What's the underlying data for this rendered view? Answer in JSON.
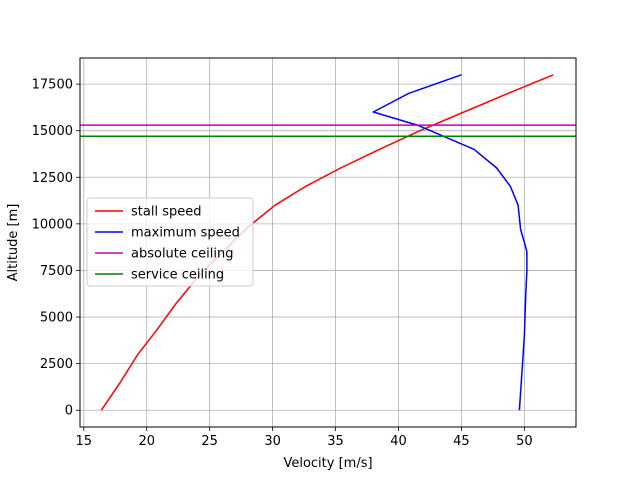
{
  "chart_data": {
    "type": "line",
    "title": "",
    "xlabel": "Velocity [m/s]",
    "ylabel": "Altitude [m]",
    "xlim": [
      14.7,
      54.1
    ],
    "ylim": [
      -900,
      18900
    ],
    "xticks": [
      15,
      20,
      25,
      30,
      35,
      40,
      45,
      50
    ],
    "yticks": [
      0,
      2500,
      5000,
      7500,
      10000,
      12500,
      15000,
      17500
    ],
    "grid": true,
    "legend_position": "center-left",
    "series": [
      {
        "name": "stall speed",
        "color": "#ff0000",
        "kind": "line",
        "x": [
          16.4,
          17.9,
          19.3,
          20.8,
          22.3,
          24.0,
          25.9,
          28.0,
          30.2,
          32.6,
          35.4,
          38.5,
          41.7,
          45.2,
          48.7,
          52.3
        ],
        "y": [
          0,
          1500,
          3000,
          4300,
          5700,
          7100,
          8400,
          9800,
          11000,
          12000,
          13000,
          14000,
          15000,
          16000,
          17000,
          18000
        ]
      },
      {
        "name": "maximum speed",
        "color": "#0000ff",
        "kind": "line",
        "x": [
          49.6,
          49.8,
          50.0,
          50.1,
          50.2,
          50.2,
          50.0,
          49.7,
          49.5,
          48.9,
          47.8,
          46.0,
          41.5,
          38.0,
          40.8,
          45.0
        ],
        "y": [
          0,
          2000,
          4000,
          6000,
          7500,
          8500,
          9000,
          9700,
          11000,
          12000,
          13000,
          14000,
          15300,
          16000,
          17000,
          18000
        ]
      },
      {
        "name": "absolute ceiling",
        "color": "#bf00bf",
        "kind": "hline",
        "y": 15300
      },
      {
        "name": "service ceiling",
        "color": "#008000",
        "kind": "hline",
        "y": 14700
      }
    ]
  }
}
